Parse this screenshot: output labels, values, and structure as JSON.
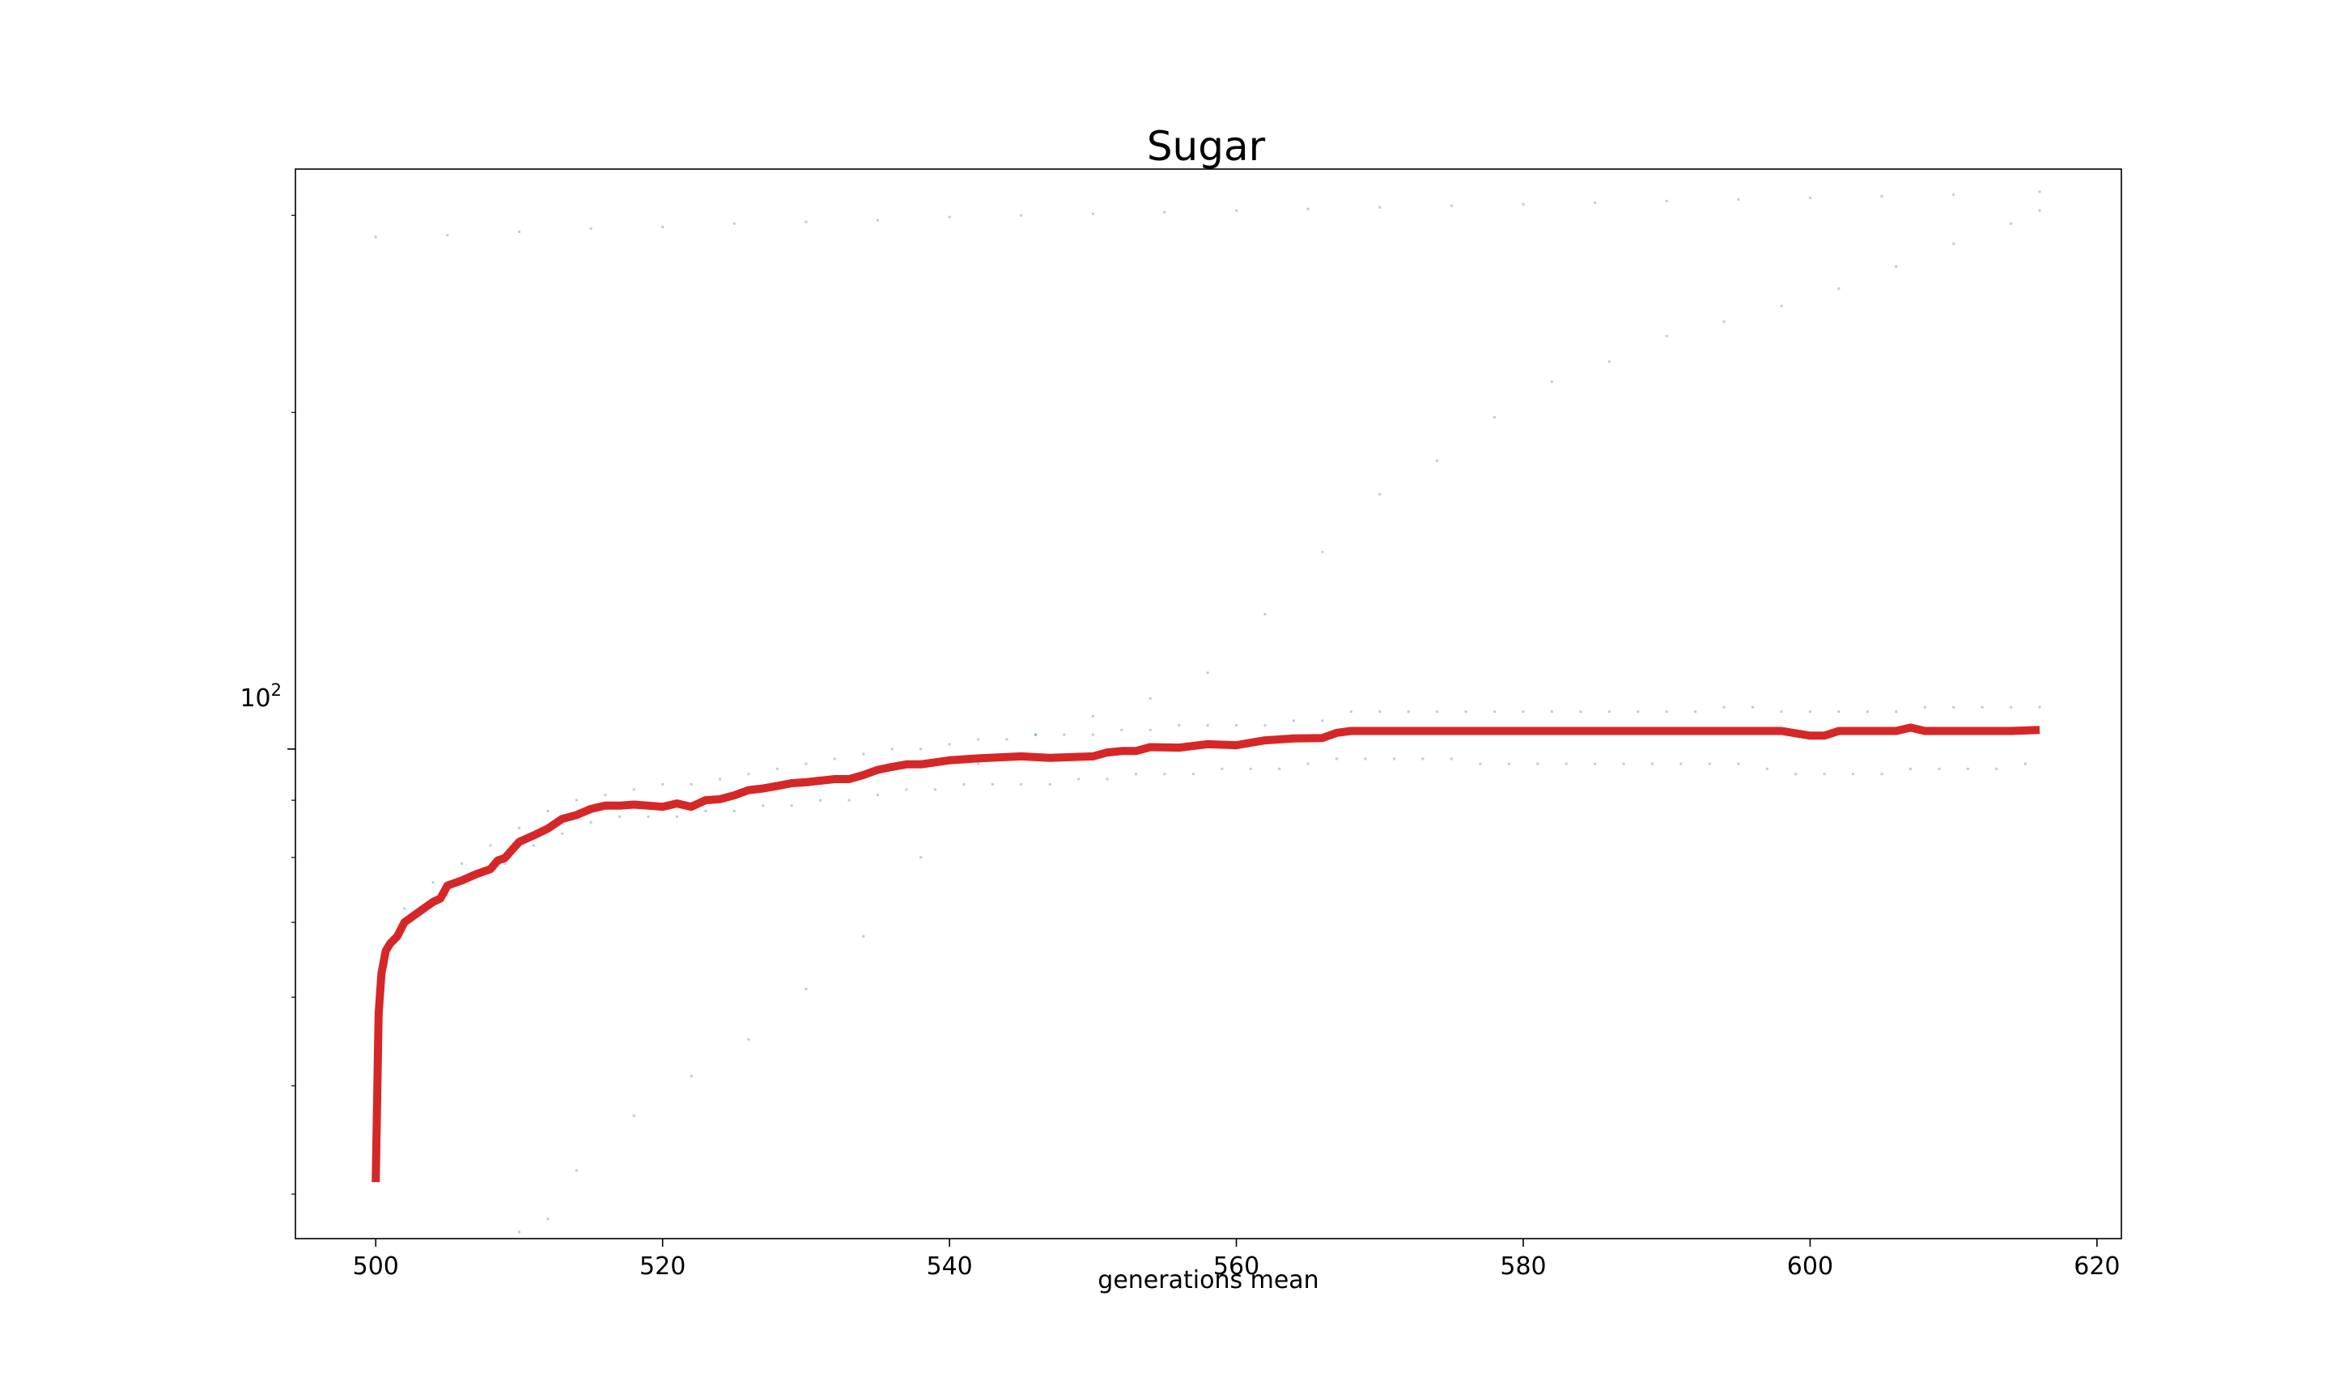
{
  "chart_data": {
    "type": "line",
    "title": "Sugar",
    "xlabel": "generations mean",
    "ylabel": "",
    "y_scale": "log",
    "xlim": [
      494.4,
      621.7
    ],
    "ylim": [
      36.5,
      330
    ],
    "grid": false,
    "legend": "none",
    "x_ticks": [
      500,
      520,
      540,
      560,
      580,
      600,
      620
    ],
    "x_tick_labels": [
      "500",
      "520",
      "540",
      "560",
      "580",
      "600",
      "620"
    ],
    "y_major_ticks": [
      100
    ],
    "y_major_tick_labels": [
      "10",
      "2"
    ],
    "y_minor_ticks": [
      40,
      50,
      60,
      70,
      80,
      90,
      200,
      300
    ],
    "colors": {
      "mean_line": "#d62728",
      "points": "#1f77b4"
    },
    "series": [
      {
        "name": "",
        "kind": "mean-line",
        "x": [
          500,
          500.2,
          500.4,
          500.7,
          501,
          501.5,
          502,
          503,
          504,
          504.5,
          505,
          506,
          507,
          508,
          508.5,
          509,
          510,
          511,
          512,
          513,
          514,
          515,
          516,
          517,
          518,
          519,
          520,
          521,
          522,
          523,
          524,
          525,
          526,
          527,
          528,
          529,
          530,
          532,
          533,
          534,
          535,
          536,
          537,
          538,
          539,
          540,
          542,
          545,
          547,
          550,
          551,
          552,
          553,
          554,
          556,
          558,
          560,
          562,
          564,
          566,
          567,
          568,
          570,
          572,
          574,
          576,
          578,
          580,
          582,
          584,
          586,
          588,
          590,
          592,
          594,
          596,
          598,
          600,
          601,
          602,
          604,
          606,
          607,
          608,
          610,
          612,
          614,
          616
        ],
        "y": [
          41,
          58,
          63,
          66,
          67,
          68,
          70,
          71.5,
          73,
          73.5,
          75.5,
          76.3,
          77.3,
          78.1,
          79.5,
          79.9,
          82.6,
          83.7,
          84.9,
          86.6,
          87.3,
          88.4,
          89,
          89,
          89.2,
          89,
          88.8,
          89.4,
          88.8,
          90,
          90.2,
          90.9,
          91.9,
          92.2,
          92.7,
          93.2,
          93.4,
          94,
          94,
          94.8,
          95.8,
          96.4,
          96.9,
          96.9,
          97.3,
          97.7,
          98.1,
          98.5,
          98.2,
          98.5,
          99.3,
          99.6,
          99.6,
          100.4,
          100.3,
          101,
          100.8,
          101.8,
          102.2,
          102.3,
          103.4,
          103.8,
          103.8,
          103.8,
          103.8,
          103.8,
          103.8,
          103.8,
          103.8,
          103.8,
          103.8,
          103.8,
          103.8,
          103.8,
          103.8,
          103.8,
          103.8,
          102.8,
          102.8,
          103.8,
          103.8,
          103.8,
          104.5,
          103.8,
          103.8,
          103.8,
          103.8,
          104
        ]
      },
      {
        "name": "",
        "kind": "points",
        "x": [
          500,
          505,
          510,
          515,
          520,
          525,
          530,
          535,
          540,
          545,
          550,
          555,
          560,
          565,
          570,
          575,
          580,
          585,
          590,
          595,
          600,
          605,
          610,
          616
        ],
        "y": [
          287,
          288,
          290,
          292,
          293,
          295,
          296,
          297,
          299,
          300,
          301,
          302,
          303,
          304,
          305,
          306,
          307,
          308,
          309,
          310,
          311,
          312,
          313,
          315
        ]
      },
      {
        "name": "",
        "kind": "points",
        "x": [
          510,
          512,
          514,
          518,
          522,
          526,
          530,
          534,
          538,
          542,
          546,
          550,
          554,
          558,
          562,
          566,
          570,
          574,
          578,
          582,
          586,
          590,
          594,
          598,
          602,
          606,
          610,
          614,
          616
        ],
        "y": [
          37,
          38,
          42,
          47,
          51,
          55,
          61,
          68,
          80,
          97,
          103,
          107,
          111,
          117,
          132,
          150,
          169,
          181,
          198,
          213,
          222,
          234,
          241,
          249,
          258,
          270,
          283,
          295,
          303
        ]
      },
      {
        "name": "",
        "kind": "points",
        "x": [
          501,
          503,
          505,
          507,
          509,
          511,
          513,
          515,
          517,
          519,
          521,
          523,
          525,
          527,
          529,
          531,
          533,
          535,
          537,
          539,
          541,
          543,
          545,
          547,
          549,
          551,
          553,
          555,
          557,
          559,
          561,
          563,
          565,
          567,
          569,
          571,
          573,
          575,
          577,
          579,
          581,
          583,
          585,
          587,
          589,
          591,
          593,
          595,
          597,
          599,
          601,
          603,
          605,
          607,
          609,
          611,
          613,
          615
        ],
        "y": [
          67,
          71,
          74,
          77,
          79,
          82,
          84,
          86,
          87,
          87,
          87,
          88,
          88,
          89,
          89,
          90,
          90,
          91,
          92,
          92,
          93,
          93,
          93,
          93,
          94,
          94,
          95,
          95,
          95,
          96,
          96,
          96,
          97,
          98,
          98,
          98,
          98,
          98,
          97,
          97,
          97,
          97,
          97,
          97,
          97,
          97,
          97,
          97,
          96,
          95,
          95,
          95,
          95,
          96,
          96,
          96,
          96,
          97
        ]
      },
      {
        "name": "",
        "kind": "points",
        "x": [
          502,
          504,
          506,
          508,
          510,
          512,
          514,
          516,
          518,
          520,
          522,
          524,
          526,
          528,
          530,
          532,
          534,
          536,
          538,
          540,
          542,
          544,
          546,
          548,
          550,
          552,
          554,
          556,
          558,
          560,
          562,
          564,
          566,
          568,
          570,
          572,
          574,
          576,
          578,
          580,
          582,
          584,
          586,
          588,
          590,
          592,
          594,
          596,
          598,
          600,
          602,
          604,
          606,
          608,
          610,
          612,
          614,
          616
        ],
        "y": [
          72,
          76,
          79,
          82,
          85,
          88,
          90,
          91,
          92,
          93,
          93,
          94,
          95,
          96,
          97,
          98,
          99,
          100,
          100,
          101,
          102,
          102,
          103,
          103,
          103,
          104,
          104,
          105,
          105,
          105,
          105,
          106,
          106,
          108,
          108,
          108,
          108,
          108,
          108,
          108,
          108,
          108,
          108,
          108,
          108,
          108,
          109,
          109,
          108,
          108,
          108,
          108,
          108,
          109,
          109,
          109,
          109,
          109
        ]
      }
    ]
  }
}
